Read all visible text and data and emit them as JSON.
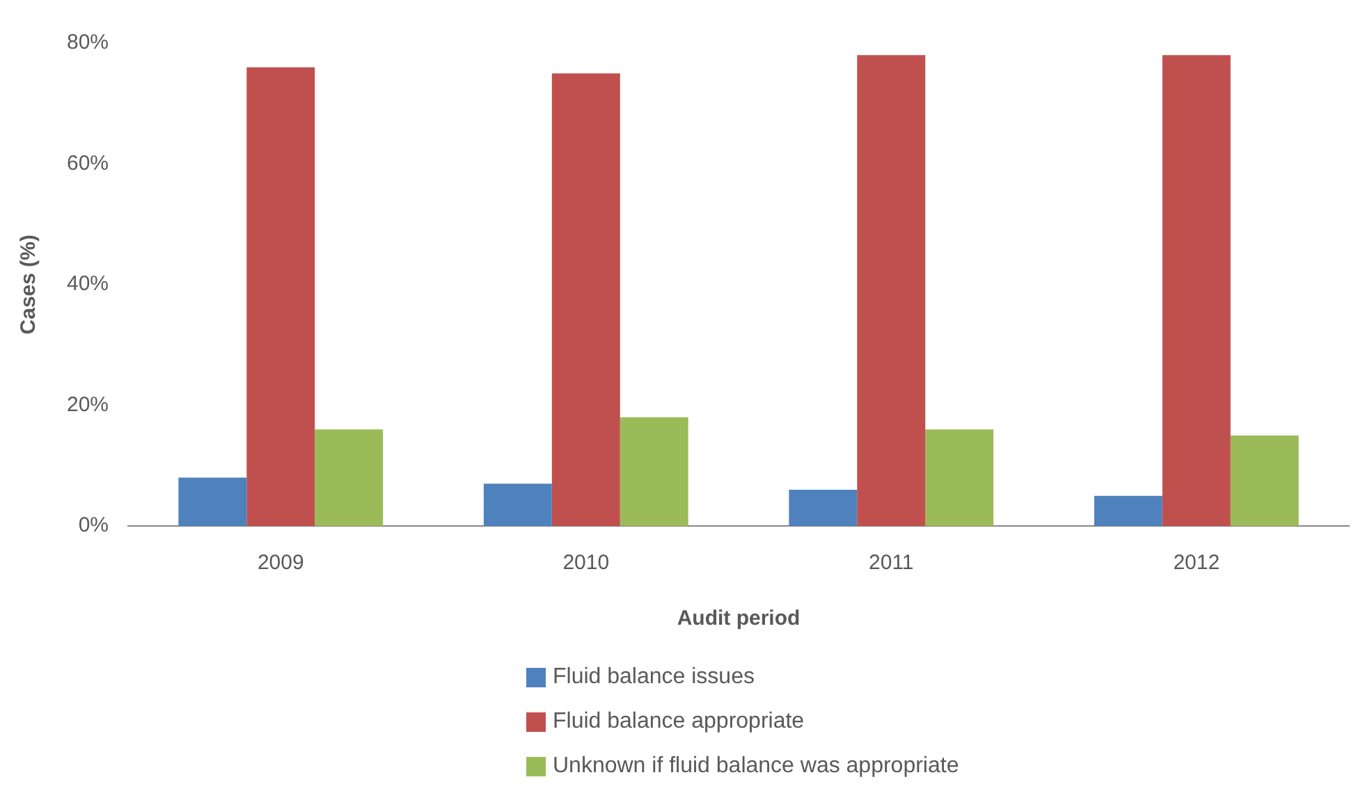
{
  "chart_data": {
    "type": "bar",
    "xlabel": "Audit period",
    "ylabel": "Cases (%)",
    "categories": [
      "2009",
      "2010",
      "2011",
      "2012"
    ],
    "series": [
      {
        "name": "Fluid balance issues",
        "color": "#4f81bd",
        "values": [
          8,
          7,
          6,
          5
        ]
      },
      {
        "name": "Fluid balance appropriate",
        "color": "#c0504d",
        "values": [
          76,
          75,
          78,
          78
        ]
      },
      {
        "name": "Unknown if fluid balance was appropriate",
        "color": "#9bbb59",
        "values": [
          16,
          18,
          16,
          15
        ]
      }
    ],
    "ylim": [
      0,
      80
    ],
    "yticks": [
      {
        "value": 0,
        "label": "0%"
      },
      {
        "value": 20,
        "label": "20%"
      },
      {
        "value": 40,
        "label": "40%"
      },
      {
        "value": 60,
        "label": "60%"
      },
      {
        "value": 80,
        "label": "80%"
      }
    ],
    "grid": false,
    "legend": "bottom"
  }
}
